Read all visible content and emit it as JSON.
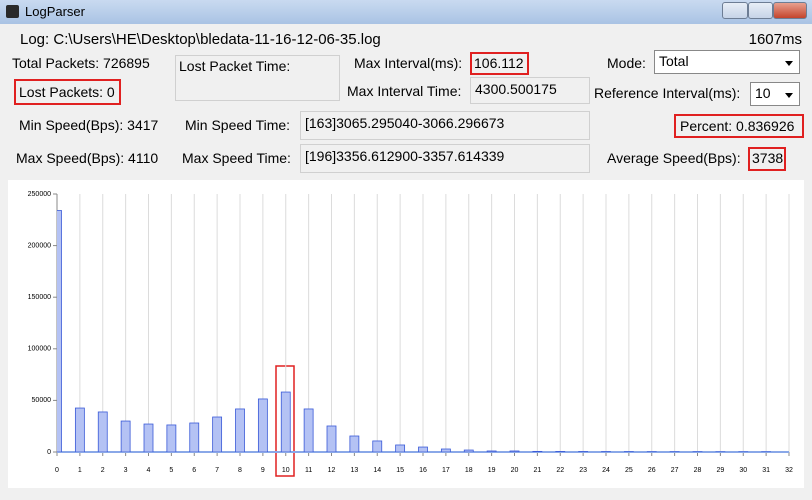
{
  "window": {
    "title": "LogParser"
  },
  "log": {
    "path": "Log: C:\\Users\\HE\\Desktop\\bledata-11-16-12-06-35.log",
    "elapsed": "1607ms"
  },
  "stats": {
    "total_packets": "Total Packets: 726895",
    "lost_packets": "Lost Packets: 0",
    "lost_packet_time_label": "Lost Packet Time:",
    "max_interval_label": "Max Interval(ms):",
    "max_interval_value": "106.112",
    "max_interval_time_label": "Max Interval Time:",
    "max_interval_time_value": "4300.500175",
    "mode_label": "Mode:",
    "mode_value": "Total",
    "reference_interval_label": "Reference Interval(ms):",
    "reference_interval_value": "10",
    "min_speed": "Min Speed(Bps): 3417",
    "min_speed_time_label": "Min Speed Time:",
    "min_speed_time_value": "[163]3065.295040-3066.296673",
    "percent": "Percent: 0.836926",
    "max_speed": "Max Speed(Bps): 4110",
    "max_speed_time_label": "Max Speed Time:",
    "max_speed_time_value": "[196]3356.612900-3357.614339",
    "average_speed_label": "Average Speed(Bps):",
    "average_speed_value": "3738"
  },
  "chart_data": {
    "type": "bar",
    "x": [
      0,
      1,
      2,
      3,
      4,
      5,
      6,
      7,
      8,
      9,
      10,
      11,
      12,
      13,
      14,
      15,
      16,
      17,
      18,
      19,
      20,
      21,
      22,
      23,
      24,
      25,
      26,
      27,
      28,
      29,
      30,
      31
    ],
    "values": [
      234000,
      42600,
      38800,
      30000,
      27100,
      26200,
      28100,
      33900,
      41700,
      51400,
      58100,
      41700,
      25200,
      15500,
      10700,
      6800,
      4800,
      2900,
      1900,
      1000,
      1000,
      600,
      500,
      400,
      300,
      300,
      200,
      200,
      200,
      100,
      100,
      100
    ],
    "color": "#b4c2f4",
    "edge_color": "#3a5ad8",
    "xlim": [
      0,
      32
    ],
    "xticks": [
      0,
      1,
      2,
      3,
      4,
      5,
      6,
      7,
      8,
      9,
      10,
      11,
      12,
      13,
      14,
      15,
      16,
      17,
      18,
      19,
      20,
      21,
      22,
      23,
      24,
      25,
      26,
      27,
      28,
      29,
      30,
      31,
      32
    ],
    "ylim": [
      0,
      250000
    ],
    "yticks": [
      0,
      50000,
      100000,
      150000,
      200000,
      250000
    ],
    "grid": "x"
  }
}
